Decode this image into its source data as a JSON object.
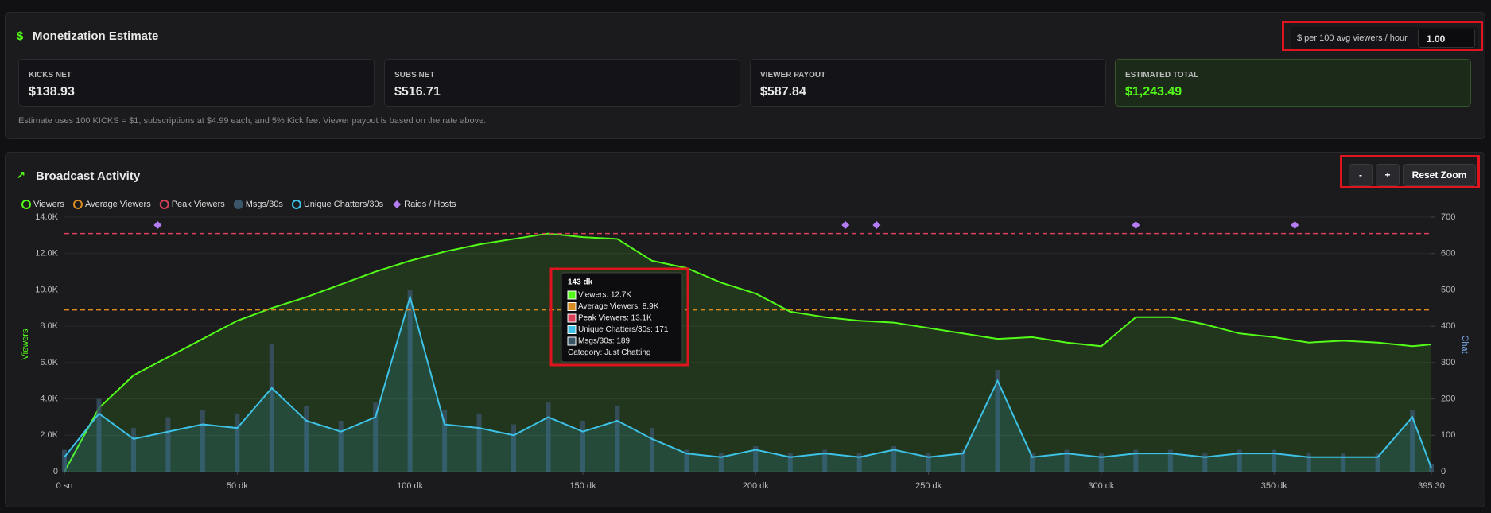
{
  "monetization": {
    "title": "Monetization Estimate",
    "rate_label": "$ per 100 avg viewers / hour",
    "rate_value": "1.00",
    "cards": [
      {
        "label": "KICKS NET",
        "value": "$138.93"
      },
      {
        "label": "SUBS NET",
        "value": "$516.71"
      },
      {
        "label": "VIEWER PAYOUT",
        "value": "$587.84"
      },
      {
        "label": "ESTIMATED TOTAL",
        "value": "$1,243.49"
      }
    ],
    "note": "Estimate uses 100 KICKS = $1, subscriptions at $4.99 each, and 5% Kick fee. Viewer payout is based on the rate above."
  },
  "activity": {
    "title": "Broadcast Activity",
    "buttons": [
      "-",
      "+",
      "Reset Zoom"
    ]
  },
  "chart_data": {
    "type": "line",
    "x": [
      0,
      10,
      20,
      30,
      40,
      50,
      60,
      70,
      80,
      90,
      100,
      110,
      120,
      130,
      140,
      150,
      160,
      170,
      180,
      190,
      200,
      210,
      220,
      230,
      240,
      250,
      260,
      270,
      280,
      290,
      300,
      310,
      320,
      330,
      340,
      350,
      360,
      370,
      380,
      390,
      395.5
    ],
    "series": [
      {
        "name": "Viewers",
        "color": "#53fc18",
        "axis": "y",
        "values": [
          0,
          3500,
          5300,
          6300,
          7300,
          8300,
          9000,
          9600,
          10300,
          11000,
          11600,
          12100,
          12500,
          12800,
          13100,
          12900,
          12800,
          11600,
          11200,
          10400,
          9800,
          8800,
          8500,
          8300,
          8200,
          7900,
          7600,
          7300,
          7400,
          7100,
          6900,
          8500,
          8500,
          8100,
          7600,
          7400,
          7100,
          7200,
          7100,
          6900,
          7000
        ]
      },
      {
        "name": "Msgs/30s",
        "color": "#3a5468",
        "axis": "y2",
        "style": "bar",
        "values": [
          60,
          200,
          120,
          150,
          170,
          160,
          350,
          180,
          140,
          190,
          500,
          170,
          160,
          130,
          190,
          140,
          180,
          120,
          60,
          50,
          70,
          50,
          60,
          50,
          70,
          50,
          60,
          280,
          50,
          60,
          50,
          60,
          60,
          50,
          60,
          60,
          50,
          50,
          50,
          170,
          20
        ]
      },
      {
        "name": "Unique Chatters/30s",
        "color": "#3ec1e6",
        "axis": "y2",
        "values": [
          40,
          160,
          90,
          110,
          130,
          120,
          230,
          140,
          110,
          150,
          480,
          130,
          120,
          100,
          150,
          110,
          140,
          90,
          50,
          40,
          60,
          40,
          50,
          40,
          60,
          40,
          50,
          250,
          40,
          50,
          40,
          50,
          50,
          40,
          50,
          50,
          40,
          40,
          40,
          150,
          10
        ]
      }
    ],
    "reference_lines": [
      {
        "name": "Average Viewers",
        "value": 8900,
        "color": "#d98c1f"
      },
      {
        "name": "Peak Viewers",
        "value": 13100,
        "color": "#d9405a"
      }
    ],
    "raids": {
      "name": "Raids / Hosts",
      "color": "#b57cf2",
      "x": [
        27,
        226,
        235,
        310,
        356
      ]
    },
    "xlim": [
      0,
      395.5
    ],
    "xticks": [
      {
        "value": 0,
        "label": "0 sn"
      },
      {
        "value": 50,
        "label": "50 dk"
      },
      {
        "value": 100,
        "label": "100 dk"
      },
      {
        "value": 150,
        "label": "150 dk"
      },
      {
        "value": 200,
        "label": "200 dk"
      },
      {
        "value": 250,
        "label": "250 dk"
      },
      {
        "value": 300,
        "label": "300 dk"
      },
      {
        "value": 350,
        "label": "350 dk"
      },
      {
        "value": 395.5,
        "label": "395:30"
      }
    ],
    "ylim": [
      0,
      14000
    ],
    "yticks": [
      0,
      {
        "value": 2000,
        "label": "2.0K"
      },
      {
        "value": 4000,
        "label": "4.0K"
      },
      {
        "value": 6000,
        "label": "6.0K"
      },
      {
        "value": 8000,
        "label": "8.0K"
      },
      {
        "value": 10000,
        "label": "10.0K"
      },
      {
        "value": 12000,
        "label": "12.0K"
      },
      {
        "value": 14000,
        "label": "14.0K"
      }
    ],
    "y2lim": [
      0,
      700
    ],
    "y2ticks": [
      0,
      100,
      200,
      300,
      400,
      500,
      600,
      700
    ],
    "ylabel": "Viewers",
    "y2label": "Chat",
    "grid": true,
    "legend": "top-left",
    "tooltip": {
      "title": "143 dk",
      "lines": [
        "Viewers: 12.7K",
        "Average Viewers: 8.9K",
        "Peak Viewers: 13.1K",
        "Unique Chatters/30s: 171",
        "Msgs/30s: 189",
        "Category: Just Chatting"
      ]
    }
  }
}
